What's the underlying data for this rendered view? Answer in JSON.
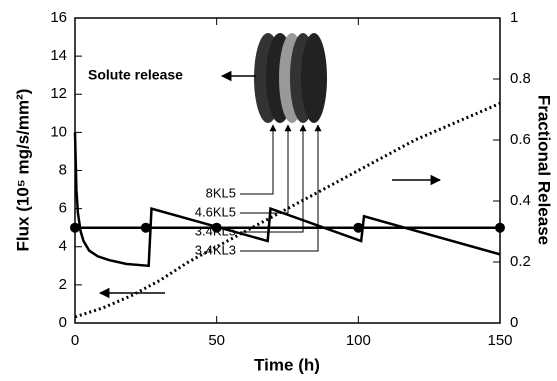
{
  "chart_data": {
    "type": "line",
    "xlabel": "Time  (h)",
    "ylabel": "Flux  (10⁵ mg/s/mm²)",
    "y2label": "Fractional  Release",
    "xlim": [
      0,
      150
    ],
    "xticks": [
      0,
      50,
      100,
      150
    ],
    "ylim": [
      0,
      16
    ],
    "yticks": [
      0,
      2,
      4,
      6,
      8,
      10,
      12,
      14,
      16
    ],
    "y2lim": [
      0,
      1
    ],
    "y2ticks": [
      0,
      0.2,
      0.4,
      0.6,
      0.8,
      1
    ],
    "annotations": [
      "Solute release",
      "8KL5",
      "4.6KL5",
      "3.4KL5",
      "3.4KL3"
    ],
    "series": [
      {
        "color": "#000000",
        "style": "solid",
        "x": [
          0,
          0.5,
          1,
          2,
          3,
          5,
          8,
          12,
          18,
          26,
          27,
          68,
          69,
          101,
          102,
          150
        ],
        "values": [
          10,
          7,
          5.8,
          4.8,
          4.3,
          3.8,
          3.5,
          3.3,
          3.1,
          3.0,
          6.0,
          4.3,
          6.0,
          4.3,
          5.6,
          3.6
        ]
      },
      {
        "color": "#000000",
        "style": "markers",
        "x": [
          0,
          25,
          50,
          100,
          150
        ],
        "values": [
          5,
          5,
          5,
          5,
          5
        ]
      },
      {
        "color": "#000000",
        "style": "dotted",
        "axis": "y2",
        "x": [
          0,
          10,
          20,
          30,
          40,
          50,
          60,
          70,
          80,
          90,
          100,
          110,
          120,
          130,
          140,
          150
        ],
        "values": [
          0.02,
          0.05,
          0.09,
          0.14,
          0.2,
          0.25,
          0.3,
          0.35,
          0.4,
          0.45,
          0.5,
          0.55,
          0.6,
          0.64,
          0.68,
          0.72
        ]
      }
    ]
  }
}
